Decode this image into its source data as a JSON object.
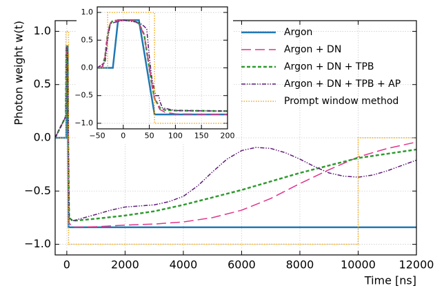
{
  "chart_data": [
    {
      "type": "line",
      "x_label": "Time [ns]",
      "y_label": "Photon weight w(t)",
      "xlim": [
        -400,
        12000
      ],
      "ylim": [
        -1.1,
        1.1
      ],
      "xticks": [
        0,
        2000,
        4000,
        6000,
        8000,
        10000,
        12000
      ],
      "yticks": [
        {
          "value": -1.0,
          "label": "−1.0"
        },
        {
          "value": -0.5,
          "label": "−0.5"
        },
        {
          "value": 0.0,
          "label": "0.0"
        },
        0.5,
        {
          "value": 1.0,
          "label": "1.0"
        }
      ],
      "grid": true,
      "legend": "upper right",
      "series": [
        {
          "name": "Argon",
          "color": "#1f77b4",
          "style": "solid",
          "width": 2.5,
          "x": [
            -400,
            -20,
            -10,
            30,
            60,
            100,
            12000
          ],
          "values": [
            0,
            0,
            0.86,
            0.86,
            -0.84,
            -0.84,
            -0.84
          ]
        },
        {
          "name": "Argon + DN",
          "color": "#e0338a",
          "style": "long-dash",
          "width": 1.5,
          "x": [
            -400,
            -35,
            -20,
            30,
            50,
            80,
            200,
            1000,
            2000,
            3000,
            4000,
            5000,
            6000,
            7000,
            8000,
            9000,
            10000,
            11000,
            12000
          ],
          "values": [
            0,
            0.2,
            0.85,
            0.8,
            0,
            -0.8,
            -0.84,
            -0.835,
            -0.82,
            -0.81,
            -0.79,
            -0.75,
            -0.68,
            -0.57,
            -0.43,
            -0.3,
            -0.18,
            -0.1,
            -0.04
          ]
        },
        {
          "name": "Argon + DN + TPB",
          "color": "#2e9a2e",
          "style": "dashed",
          "width": 2.5,
          "x": [
            -400,
            -35,
            -20,
            30,
            50,
            80,
            200,
            1000,
            2000,
            3000,
            4000,
            5000,
            6000,
            7000,
            8000,
            9000,
            10000,
            11000,
            12000
          ],
          "values": [
            0,
            0.2,
            0.85,
            0.8,
            0,
            -0.75,
            -0.78,
            -0.76,
            -0.73,
            -0.69,
            -0.63,
            -0.56,
            -0.49,
            -0.41,
            -0.33,
            -0.26,
            -0.19,
            -0.15,
            -0.11
          ]
        },
        {
          "name": "Argon + DN + TPB + AP",
          "color": "#5e1a78",
          "style": "dash-dot-dot",
          "width": 1.5,
          "x": [
            -400,
            -35,
            -20,
            30,
            50,
            80,
            200,
            1000,
            1500,
            2000,
            2500,
            3000,
            3500,
            4000,
            4500,
            5000,
            5500,
            6000,
            6500,
            7000,
            7500,
            8000,
            8500,
            9000,
            9500,
            10000,
            10500,
            11000,
            11500,
            12000
          ],
          "values": [
            0,
            0.2,
            0.85,
            0.8,
            0,
            -0.75,
            -0.78,
            -0.72,
            -0.68,
            -0.65,
            -0.64,
            -0.63,
            -0.6,
            -0.55,
            -0.45,
            -0.32,
            -0.2,
            -0.12,
            -0.09,
            -0.1,
            -0.14,
            -0.2,
            -0.27,
            -0.33,
            -0.36,
            -0.37,
            -0.35,
            -0.31,
            -0.26,
            -0.21
          ]
        },
        {
          "name": "Prompt window method",
          "color": "#f0a81c",
          "style": "dotted",
          "width": 1.5,
          "x": [
            -400,
            -30,
            -30,
            60,
            60,
            10000,
            10000,
            12000
          ],
          "values": [
            0,
            0,
            1,
            1,
            -1,
            -1,
            0,
            0
          ]
        }
      ]
    },
    {
      "type": "line",
      "inset": true,
      "xlim": [
        -50,
        200
      ],
      "ylim": [
        -1.1,
        1.1
      ],
      "xticks": [
        {
          "value": -50,
          "label": "−50"
        },
        0,
        50,
        100,
        150,
        200
      ],
      "yticks": [
        {
          "value": -1.0,
          "label": "−1.0"
        },
        {
          "value": -0.5,
          "label": "−0.5"
        },
        {
          "value": 0.0,
          "label": "0.0"
        },
        0.5,
        {
          "value": 1.0,
          "label": "1.0"
        }
      ],
      "grid": true,
      "series": [
        {
          "color": "#1f77b4",
          "style": "solid",
          "width": 2.5,
          "x": [
            -50,
            -20,
            -10,
            30,
            60,
            100,
            200
          ],
          "values": [
            0,
            0,
            0.86,
            0.86,
            -0.84,
            -0.84,
            -0.84
          ]
        },
        {
          "color": "#2e9a2e",
          "style": "dashed",
          "width": 2.5,
          "x": [
            -50,
            -40,
            -35,
            -30,
            -25,
            -20,
            0,
            20,
            30,
            40,
            45,
            50,
            55,
            60,
            70,
            80,
            100,
            200
          ],
          "values": [
            0,
            0.02,
            0.2,
            0.6,
            0.8,
            0.85,
            0.86,
            0.85,
            0.8,
            0.6,
            0.3,
            0,
            -0.3,
            -0.55,
            -0.72,
            -0.76,
            -0.77,
            -0.78
          ]
        },
        {
          "color": "#e0338a",
          "style": "long-dash",
          "width": 1.5,
          "x": [
            -50,
            -40,
            -35,
            -30,
            -25,
            -20,
            0,
            20,
            30,
            40,
            45,
            50,
            55,
            60,
            70,
            80,
            100,
            200
          ],
          "values": [
            0,
            0.02,
            0.2,
            0.6,
            0.8,
            0.85,
            0.86,
            0.85,
            0.8,
            0.6,
            0.3,
            0,
            -0.3,
            -0.55,
            -0.75,
            -0.8,
            -0.83,
            -0.84
          ]
        },
        {
          "color": "#5e1a78",
          "style": "dash-dot-dot",
          "width": 1.5,
          "x": [
            -50,
            -35,
            -30,
            -25,
            0,
            30,
            40,
            45,
            50,
            55,
            60,
            62,
            68,
            70,
            75,
            100,
            200
          ],
          "values": [
            0,
            0.1,
            0.5,
            0.8,
            0.86,
            0.82,
            0.75,
            0.7,
            0.2,
            -0.2,
            -0.4,
            -0.5,
            -0.5,
            -0.6,
            -0.72,
            -0.77,
            -0.78
          ]
        },
        {
          "color": "#f0a81c",
          "style": "dotted",
          "width": 1.5,
          "x": [
            -50,
            -30,
            -30,
            60,
            60,
            200
          ],
          "values": [
            0,
            0,
            1,
            1,
            -1,
            -1
          ]
        }
      ]
    }
  ]
}
